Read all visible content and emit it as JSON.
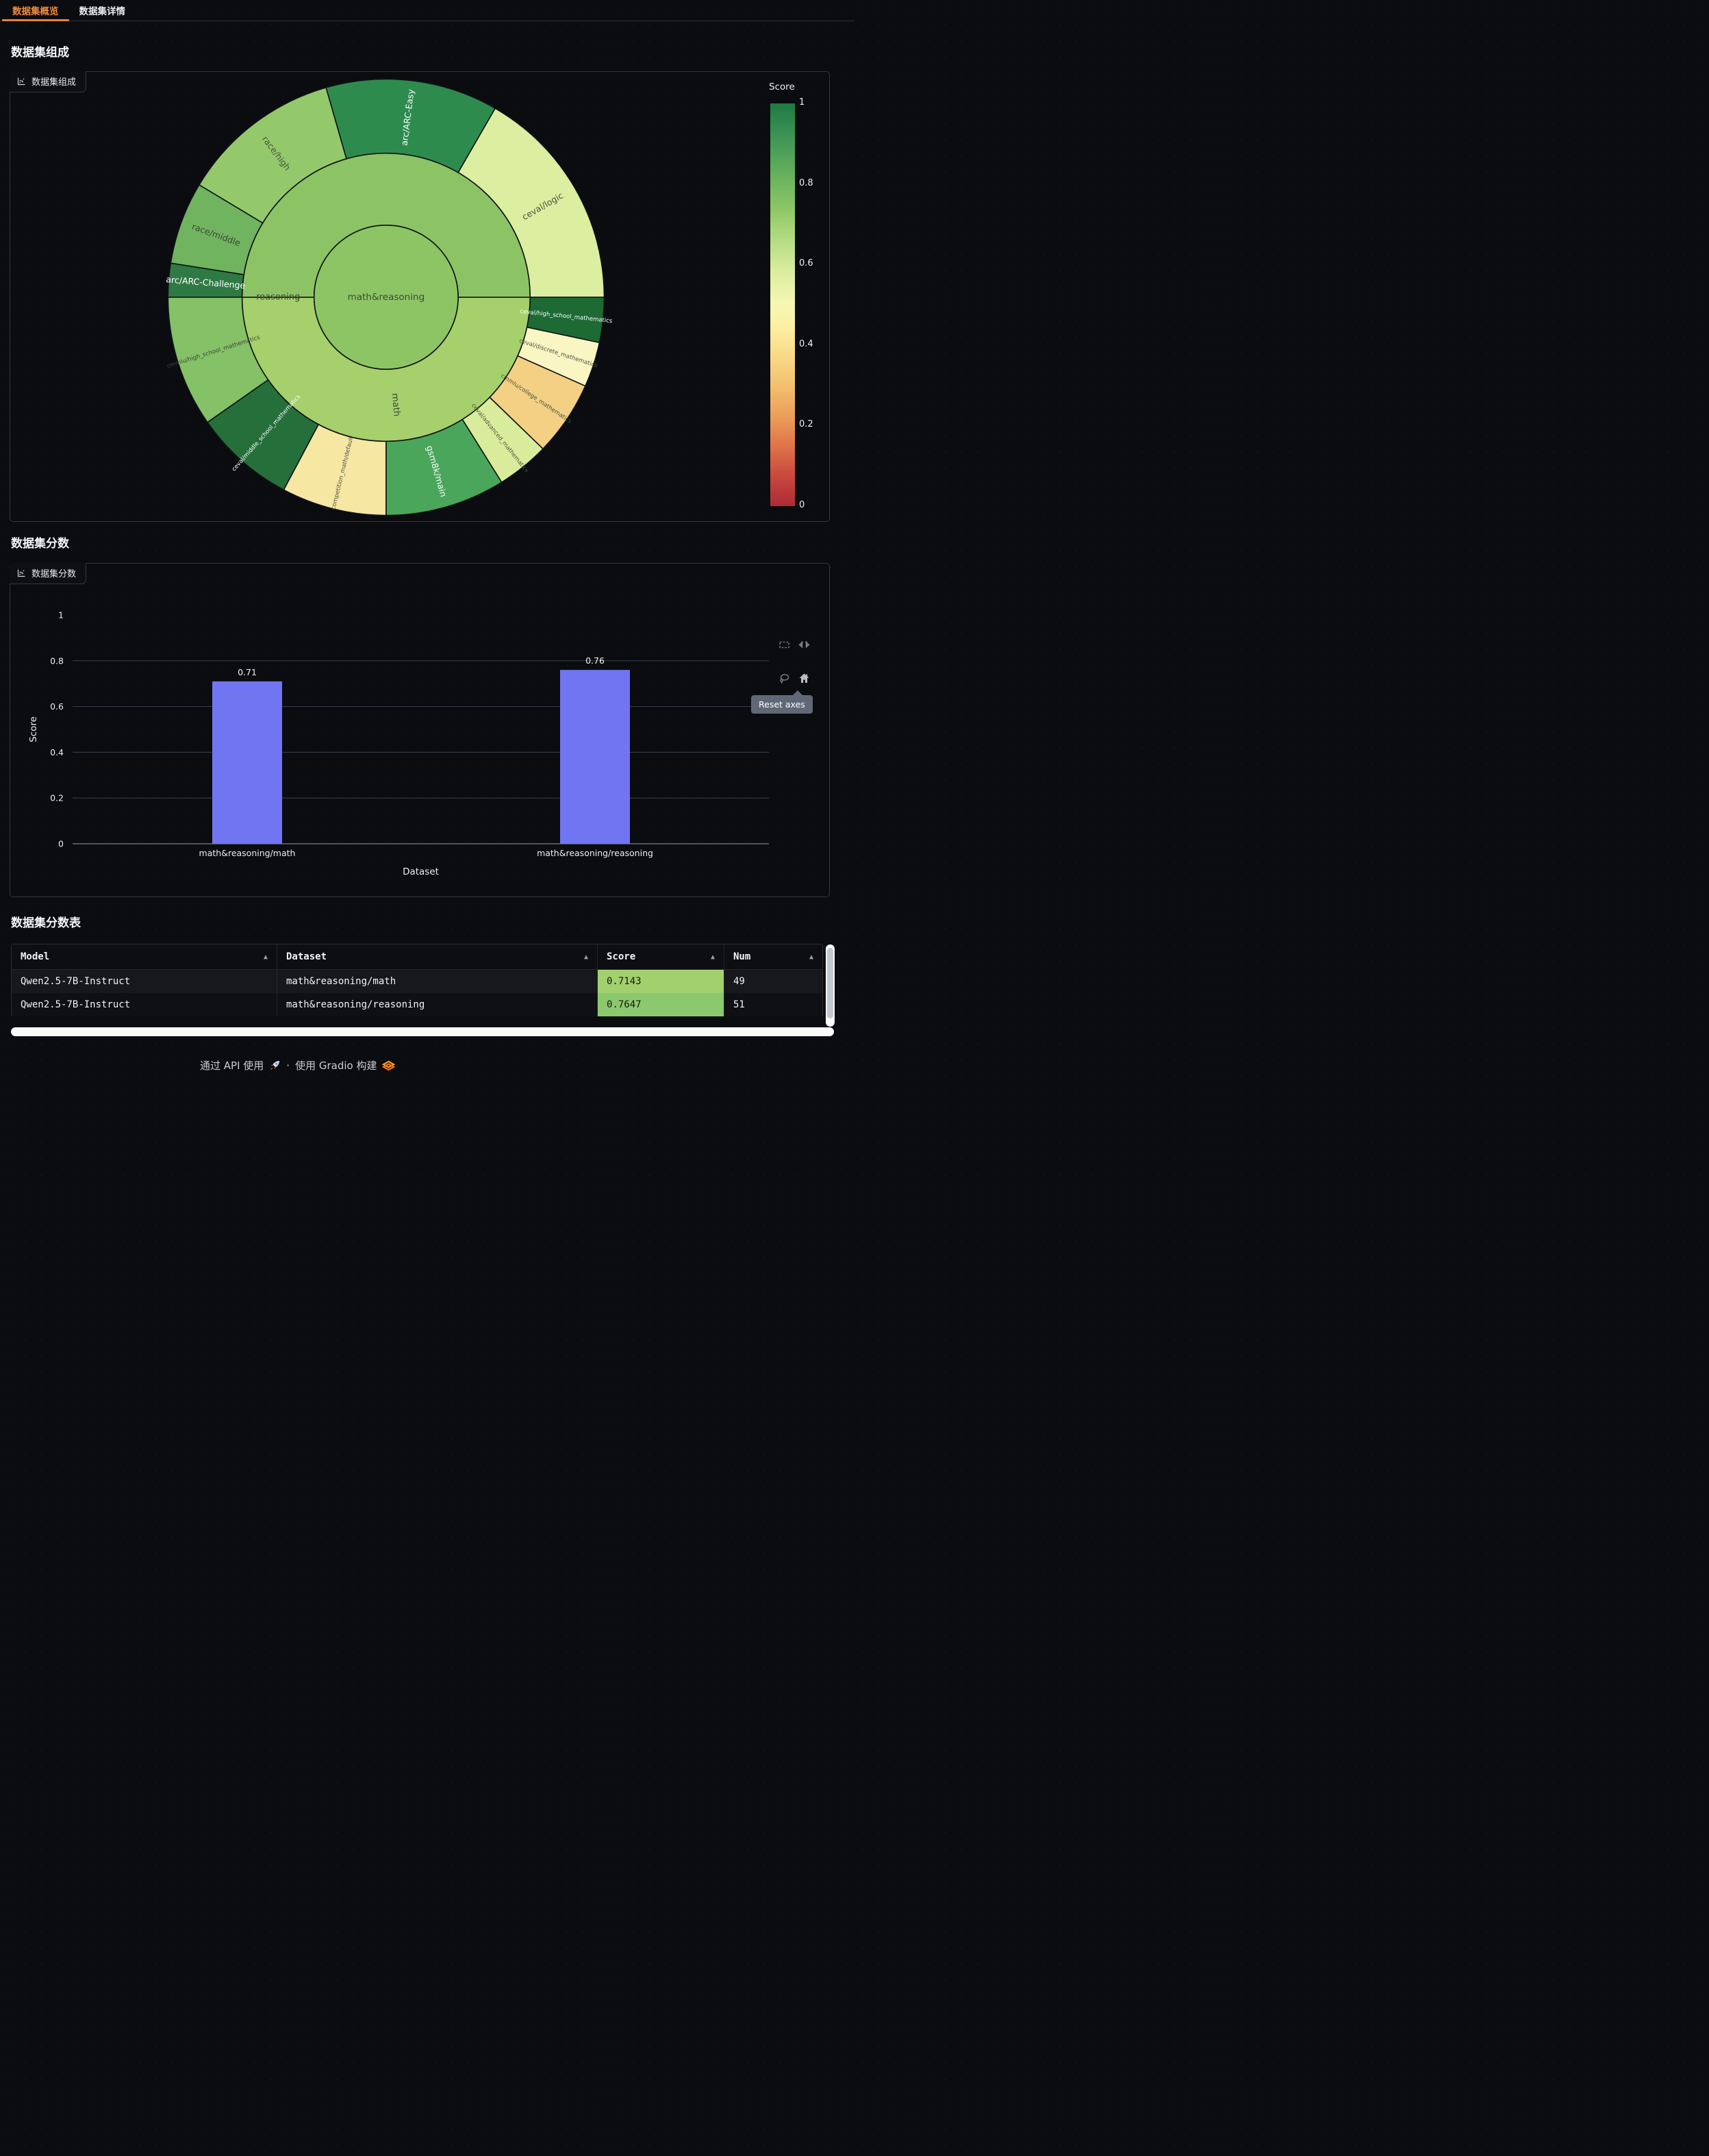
{
  "tabs": [
    {
      "label": "数据集概览",
      "active": true
    },
    {
      "label": "数据集详情",
      "active": false
    }
  ],
  "sections": {
    "composition": "数据集组成",
    "scores": "数据集分数",
    "table": "数据集分数表"
  },
  "panels": {
    "composition_chip": "数据集组成",
    "scores_chip": "数据集分数"
  },
  "chart_data": [
    {
      "type": "sunburst",
      "title": "数据集组成",
      "colorbar": {
        "title": "Score",
        "ticks": [
          "1",
          "0.8",
          "0.6",
          "0.4",
          "0.2",
          "0"
        ],
        "colormap": "RdYlGn",
        "range": [
          0,
          1
        ]
      },
      "center": {
        "label": "math&reasoning",
        "color": "#8dc565",
        "text_color": "#3e4637"
      },
      "inner": [
        {
          "label": "math",
          "a0": -180,
          "a1": 0,
          "label_angle": -85,
          "color": "#a5d06b",
          "text_color": "#3e4637"
        },
        {
          "label": "reasoning",
          "a0": 0,
          "a1": 180,
          "label_angle": 180,
          "color": "#8cc365",
          "text_color": "#3e4637"
        }
      ],
      "outer": [
        {
          "label": "ceval/logic",
          "a0": 0,
          "a1": 60,
          "color": "#dcee9f",
          "text_color": "#4a5240"
        },
        {
          "label": "arc/ARC-Easy",
          "a0": 60,
          "a1": 106,
          "color": "#2e8b4e",
          "text_color": "#ffffff"
        },
        {
          "label": "race/high",
          "a0": 106,
          "a1": 149,
          "color": "#93c96b",
          "text_color": "#4a5240"
        },
        {
          "label": "race/middle",
          "a0": 149,
          "a1": 171,
          "color": "#70b45f",
          "text_color": "#3e4637"
        },
        {
          "label": "arc/ARC-Challenge",
          "a0": 171,
          "a1": 180,
          "color": "#2f7a44",
          "text_color": "#ffffff"
        },
        {
          "label": "cmmlu/high_school_mathematics",
          "a0": -180,
          "a1": -145,
          "color": "#84c167",
          "text_color": "#3e4637"
        },
        {
          "label": "ceval/middle_school_mathematics",
          "a0": -145,
          "a1": -118,
          "color": "#256f3b",
          "text_color": "#ffffff"
        },
        {
          "label": "competition_math/default",
          "a0": -118,
          "a1": -90,
          "color": "#f6e7a3",
          "text_color": "#4a5240"
        },
        {
          "label": "gsm8k/main",
          "a0": -90,
          "a1": -58,
          "color": "#4aa65a",
          "text_color": "#ffffff"
        },
        {
          "label": "ceval/advanced_mathematics",
          "a0": -58,
          "a1": -44,
          "color": "#d9ec9c",
          "text_color": "#4a5240"
        },
        {
          "label": "cmmlu/college_mathematics",
          "a0": -44,
          "a1": -24,
          "color": "#f3d083",
          "text_color": "#4a5240"
        },
        {
          "label": "ceval/discrete_mathematics",
          "a0": -24,
          "a1": -12,
          "color": "#f9f6c3",
          "text_color": "#4a5240"
        },
        {
          "label": "ceval/high_school_mathematics",
          "a0": -12,
          "a1": 0,
          "color": "#1d6a35",
          "text_color": "#ffffff"
        }
      ]
    },
    {
      "type": "bar",
      "title": "数据集分数",
      "categories": [
        "math&reasoning/math",
        "math&reasoning/reasoning"
      ],
      "values": [
        0.71,
        0.76
      ],
      "value_labels": [
        "0.71",
        "0.76"
      ],
      "xlabel": "Dataset",
      "ylabel": "Score",
      "ylim": [
        0,
        1
      ],
      "yticks": [
        "0",
        "0.2",
        "0.4",
        "0.6",
        "0.8",
        "1"
      ],
      "bar_color": "#7175f2",
      "grid": true,
      "legend": false
    }
  ],
  "modebar": {
    "tooltip": "Reset axes",
    "icons": [
      "box-select",
      "autoscale",
      "lasso-select",
      "reset-axes-home"
    ]
  },
  "table": {
    "columns": [
      {
        "label": "Model",
        "sort_icon": "▲"
      },
      {
        "label": "Dataset",
        "sort_icon": "▲"
      },
      {
        "label": "Score",
        "sort_icon": "▲"
      },
      {
        "label": "Num",
        "sort_icon": "▲"
      }
    ],
    "rows": [
      {
        "model": "Qwen2.5-7B-Instruct",
        "dataset": "math&reasoning/math",
        "score": "0.7143",
        "num": "49",
        "score_bg": "#a3d06f"
      },
      {
        "model": "Qwen2.5-7B-Instruct",
        "dataset": "math&reasoning/reasoning",
        "score": "0.7647",
        "num": "51",
        "score_bg": "#8cc96e"
      }
    ]
  },
  "footer": {
    "use_api": "通过 API 使用",
    "separator": "·",
    "built_with": "使用 Gradio 构建"
  },
  "colors": {
    "accent_orange": "#e8833a",
    "bar": "#7175f2",
    "page_bg": "#0b0c0f"
  }
}
